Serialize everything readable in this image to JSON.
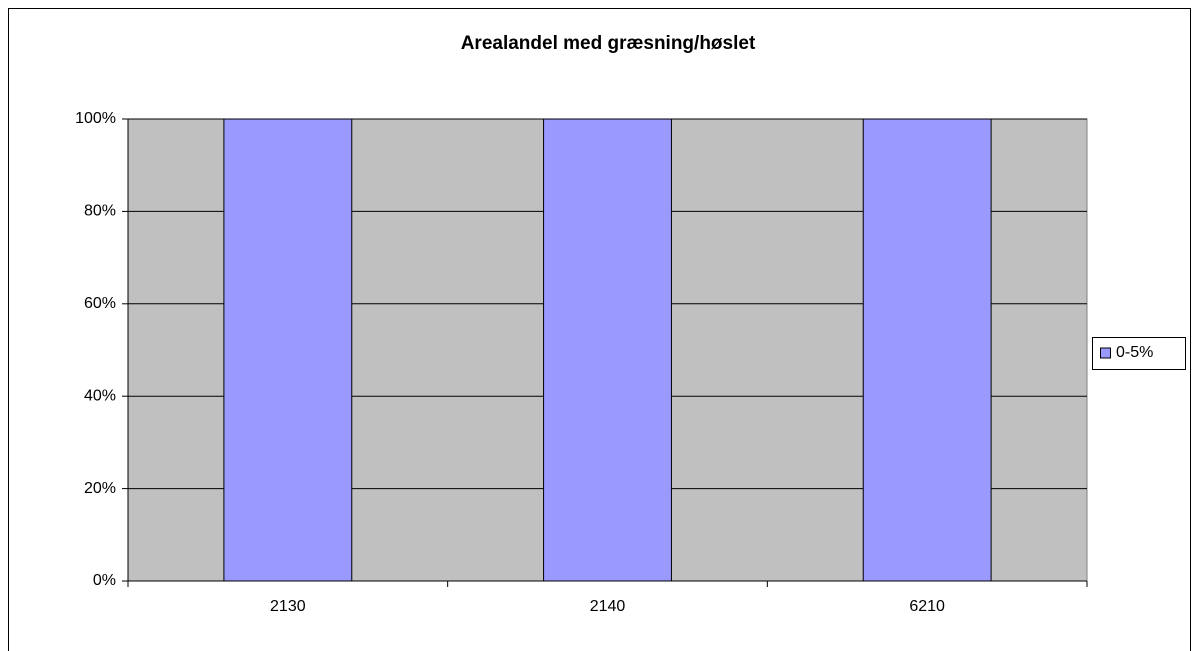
{
  "chart_data": {
    "type": "bar",
    "title": "Arealandel med græsning/høslet",
    "categories": [
      "2130",
      "2140",
      "6210"
    ],
    "series": [
      {
        "name": "0-5%",
        "color": "#9999ff",
        "values": [
          100,
          100,
          100
        ]
      }
    ],
    "ylim": [
      0,
      100
    ],
    "yticks": [
      {
        "value": 0,
        "label": "0%"
      },
      {
        "value": 20,
        "label": "20%"
      },
      {
        "value": 40,
        "label": "40%"
      },
      {
        "value": 60,
        "label": "60%"
      },
      {
        "value": 80,
        "label": "80%"
      },
      {
        "value": 100,
        "label": "100%"
      }
    ],
    "grid": true,
    "legend": "right"
  }
}
